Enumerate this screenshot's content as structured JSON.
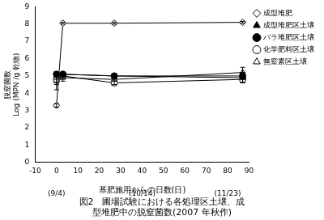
{
  "chart_data": {
    "type": "line",
    "title": [
      "図2　圃場試験における各処理区土壌、成",
      "型堆肥中の脱窒菌数(2007 年秋作)"
    ],
    "xlabel": "基肥施用からの日数(日)",
    "ylabel": [
      "脱窒菌数",
      "Log (MPN /g 乾物)"
    ],
    "x": [
      0,
      3,
      27,
      87
    ],
    "series": [
      {
        "name": "成型堆肥",
        "color": "#000000",
        "marker": "open_diamond",
        "values": [
          3.3,
          8.05,
          8.05,
          8.1
        ],
        "errors": [
          0.1,
          0.05,
          0.05,
          0.05
        ]
      },
      {
        "name": "成型堆肥区土壌",
        "color": "#000000",
        "marker": "filled_triangle",
        "values": [
          5.0,
          5.1,
          5.0,
          4.9
        ],
        "errors": [
          0.2,
          0.1,
          0.1,
          0.3
        ]
      },
      {
        "name": "バラ堆肥区土壌",
        "color": "#000000",
        "marker": "filled_circle",
        "values": [
          5.1,
          5.1,
          5.0,
          5.0
        ],
        "errors": [
          0.15,
          0.1,
          0.1,
          0.2
        ]
      },
      {
        "name": "化学肥料区土壌",
        "color": "#000000",
        "marker": "open_circle",
        "values": [
          4.8,
          5.0,
          4.6,
          4.8
        ],
        "errors": [
          0.3,
          0.1,
          0.1,
          0.2
        ]
      },
      {
        "name": "無窒素区土壌",
        "color": "#000000",
        "marker": "open_triangle",
        "values": [
          4.7,
          4.9,
          4.8,
          5.2
        ],
        "errors": [
          0.5,
          0.2,
          0.1,
          0.3
        ]
      }
    ],
    "xlim": [
      -10,
      90
    ],
    "xticks": [
      -10,
      0,
      10,
      20,
      30,
      40,
      50,
      60,
      70,
      80,
      90
    ],
    "ylim": [
      0,
      9
    ],
    "yticks": [
      0,
      1,
      2,
      3,
      4,
      5,
      6,
      7,
      8,
      9
    ],
    "annotations": [
      {
        "x": 0,
        "text": "(9/4)"
      },
      {
        "x": 40,
        "text": "(10/14)"
      },
      {
        "x": 80,
        "text": "(11/23)"
      }
    ],
    "grid": false,
    "legend": "upper right"
  }
}
